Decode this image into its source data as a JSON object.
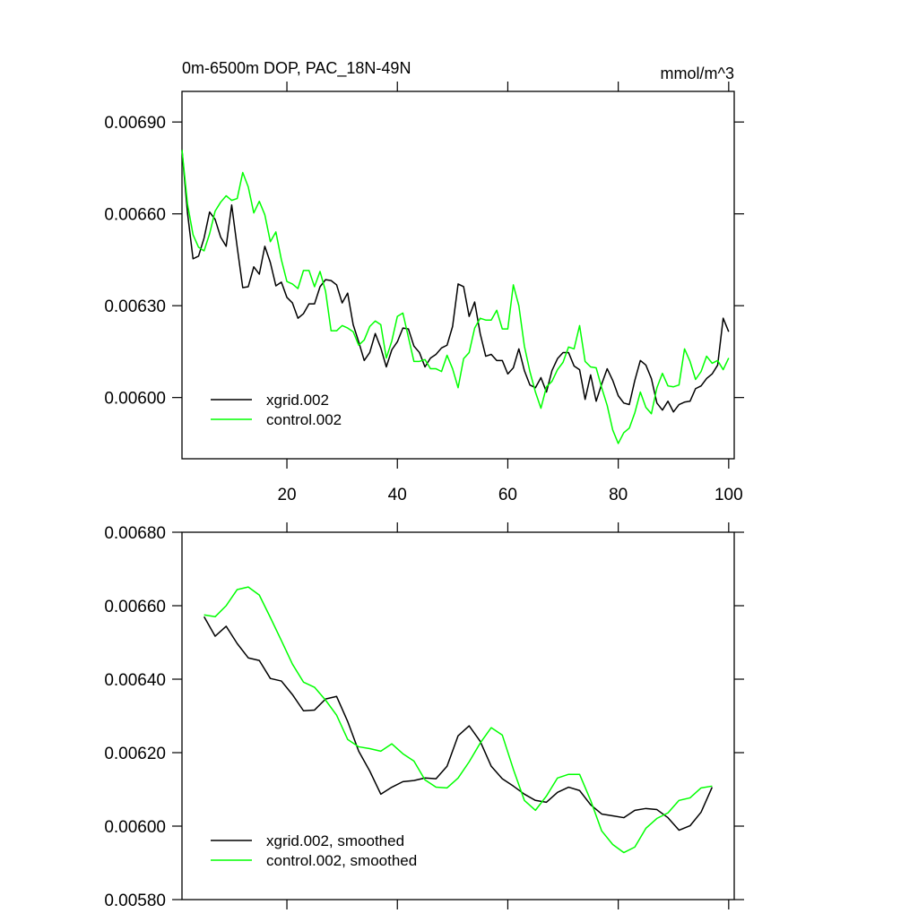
{
  "chart_data": [
    {
      "type": "line",
      "title": "0m-6500m DOP, PAC_18N-49N",
      "units": "mmol/m^3",
      "legend": "lower left",
      "x": [
        1,
        2,
        3,
        4,
        5,
        6,
        7,
        8,
        9,
        10,
        11,
        12,
        13,
        14,
        15,
        16,
        17,
        18,
        19,
        20,
        21,
        22,
        23,
        24,
        25,
        26,
        27,
        28,
        29,
        30,
        31,
        32,
        33,
        34,
        35,
        36,
        37,
        38,
        39,
        40,
        41,
        42,
        43,
        44,
        45,
        46,
        47,
        48,
        49,
        50,
        51,
        52,
        53,
        54,
        55,
        56,
        57,
        58,
        59,
        60,
        61,
        62,
        63,
        64,
        65,
        66,
        67,
        68,
        69,
        70,
        71,
        72,
        73,
        74,
        75,
        76,
        77,
        78,
        79,
        80,
        81,
        82,
        83,
        84,
        85,
        86,
        87,
        88,
        89,
        90,
        91,
        92,
        93,
        94,
        95,
        96,
        97,
        98,
        99,
        100
      ],
      "series": [
        {
          "name": "xgrid.002",
          "color": "#000000",
          "values": [
            0.006809,
            0.006603,
            0.006453,
            0.006462,
            0.006521,
            0.006606,
            0.006582,
            0.006524,
            0.006494,
            0.006629,
            0.006491,
            0.006359,
            0.006362,
            0.006427,
            0.006403,
            0.006494,
            0.006441,
            0.006365,
            0.006377,
            0.006327,
            0.006309,
            0.006259,
            0.006274,
            0.006306,
            0.006306,
            0.006362,
            0.006385,
            0.006382,
            0.006368,
            0.006309,
            0.006341,
            0.006238,
            0.006182,
            0.006121,
            0.006147,
            0.006209,
            0.006162,
            0.0061,
            0.006156,
            0.006182,
            0.006227,
            0.006224,
            0.006168,
            0.006147,
            0.0061,
            0.006129,
            0.006141,
            0.006162,
            0.006171,
            0.006232,
            0.006371,
            0.006362,
            0.006265,
            0.006312,
            0.006209,
            0.006135,
            0.006141,
            0.006121,
            0.006121,
            0.006077,
            0.006097,
            0.006159,
            0.006088,
            0.006041,
            0.006032,
            0.006065,
            0.006018,
            0.006088,
            0.006127,
            0.006147,
            0.006147,
            0.006103,
            0.006091,
            0.005994,
            0.006074,
            0.005988,
            0.006044,
            0.006094,
            0.006056,
            0.006006,
            0.005982,
            0.005977,
            0.006056,
            0.006121,
            0.006106,
            0.006062,
            0.005982,
            0.005959,
            0.005988,
            0.005953,
            0.005977,
            0.005985,
            0.005988,
            0.006029,
            0.006038,
            0.006062,
            0.006077,
            0.006106,
            0.006259,
            0.006215
          ]
        },
        {
          "name": "control.002",
          "color": "#00ff00",
          "values": [
            0.006809,
            0.006632,
            0.006532,
            0.006491,
            0.006479,
            0.006535,
            0.006609,
            0.006638,
            0.006659,
            0.006644,
            0.00665,
            0.006735,
            0.006688,
            0.006603,
            0.006641,
            0.006597,
            0.006509,
            0.006541,
            0.00645,
            0.006379,
            0.006371,
            0.006356,
            0.006415,
            0.006415,
            0.006362,
            0.006412,
            0.006347,
            0.006218,
            0.006218,
            0.006235,
            0.006227,
            0.006215,
            0.006171,
            0.006188,
            0.006232,
            0.00625,
            0.006238,
            0.006129,
            0.006185,
            0.006265,
            0.006276,
            0.006197,
            0.006118,
            0.006118,
            0.006124,
            0.006094,
            0.006094,
            0.006085,
            0.006138,
            0.006094,
            0.006032,
            0.006127,
            0.006147,
            0.006227,
            0.006259,
            0.006253,
            0.006253,
            0.006285,
            0.006224,
            0.006224,
            0.006368,
            0.0063,
            0.006168,
            0.006085,
            0.006018,
            0.005965,
            0.006035,
            0.006053,
            0.006091,
            0.006115,
            0.006165,
            0.006159,
            0.006235,
            0.006118,
            0.0061,
            0.006097,
            0.006032,
            0.005974,
            0.005894,
            0.00585,
            0.005885,
            0.0059,
            0.00595,
            0.006018,
            0.005968,
            0.005947,
            0.006032,
            0.006079,
            0.006038,
            0.006035,
            0.006041,
            0.006159,
            0.006118,
            0.006059,
            0.006085,
            0.006135,
            0.006112,
            0.006121,
            0.006091,
            0.006129
          ]
        }
      ],
      "xlim": [
        1,
        101
      ],
      "xticks": [
        20,
        40,
        60,
        80,
        100
      ],
      "ylim": [
        0.0058,
        0.007
      ],
      "yticks": [
        {
          "value": 0.006,
          "label": "0.00600"
        },
        {
          "value": 0.0063,
          "label": "0.00630"
        },
        {
          "value": 0.0066,
          "label": "0.00660"
        },
        {
          "value": 0.0069,
          "label": "0.00690"
        }
      ]
    },
    {
      "type": "line",
      "legend": "lower left",
      "x": [
        5,
        7,
        9,
        11,
        13,
        15,
        17,
        19,
        21,
        23,
        25,
        27,
        29,
        31,
        33,
        35,
        37,
        39,
        41,
        43,
        45,
        47,
        49,
        51,
        53,
        55,
        57,
        59,
        61,
        63,
        65,
        67,
        69,
        71,
        73,
        75,
        77,
        79,
        81,
        83,
        85,
        87,
        89,
        91,
        93,
        95,
        97
      ],
      "series": [
        {
          "name": "xgrid.002, smoothed",
          "color": "#000000",
          "values": [
            0.00657,
            0.006517,
            0.006544,
            0.006497,
            0.006458,
            0.006451,
            0.006402,
            0.006395,
            0.006358,
            0.006314,
            0.006316,
            0.006346,
            0.006353,
            0.006285,
            0.006204,
            0.00615,
            0.006087,
            0.006106,
            0.006121,
            0.006124,
            0.006131,
            0.006129,
            0.006163,
            0.006246,
            0.006273,
            0.006231,
            0.006163,
            0.006129,
            0.006109,
            0.006087,
            0.00607,
            0.006065,
            0.006092,
            0.006106,
            0.006097,
            0.006058,
            0.006033,
            0.006028,
            0.006023,
            0.006043,
            0.006048,
            0.006045,
            0.006023,
            0.005989,
            0.006001,
            0.006038,
            0.006106
          ]
        },
        {
          "name": "control.002, smoothed",
          "color": "#00ff00",
          "values": [
            0.006575,
            0.00657,
            0.0066,
            0.006644,
            0.006651,
            0.006629,
            0.006568,
            0.006505,
            0.006441,
            0.006392,
            0.006378,
            0.006343,
            0.006302,
            0.006236,
            0.006216,
            0.006211,
            0.006204,
            0.006224,
            0.006197,
            0.006177,
            0.006126,
            0.006106,
            0.006104,
            0.006131,
            0.006175,
            0.006226,
            0.006268,
            0.006248,
            0.006155,
            0.00607,
            0.006043,
            0.006082,
            0.006131,
            0.006141,
            0.006141,
            0.00607,
            0.005987,
            0.00595,
            0.005928,
            0.005943,
            0.005994,
            0.006021,
            0.006036,
            0.00607,
            0.006077,
            0.006104,
            0.006109
          ]
        }
      ],
      "xlim": [
        1,
        101
      ],
      "xticks": [
        20,
        40,
        60,
        80,
        100
      ],
      "ylim": [
        0.0058,
        0.0068
      ],
      "yticks": [
        {
          "value": 0.0058,
          "label": "0.00580"
        },
        {
          "value": 0.006,
          "label": "0.00600"
        },
        {
          "value": 0.0062,
          "label": "0.00620"
        },
        {
          "value": 0.0064,
          "label": "0.00640"
        },
        {
          "value": 0.0066,
          "label": "0.00660"
        },
        {
          "value": 0.0068,
          "label": "0.00680"
        }
      ]
    }
  ]
}
